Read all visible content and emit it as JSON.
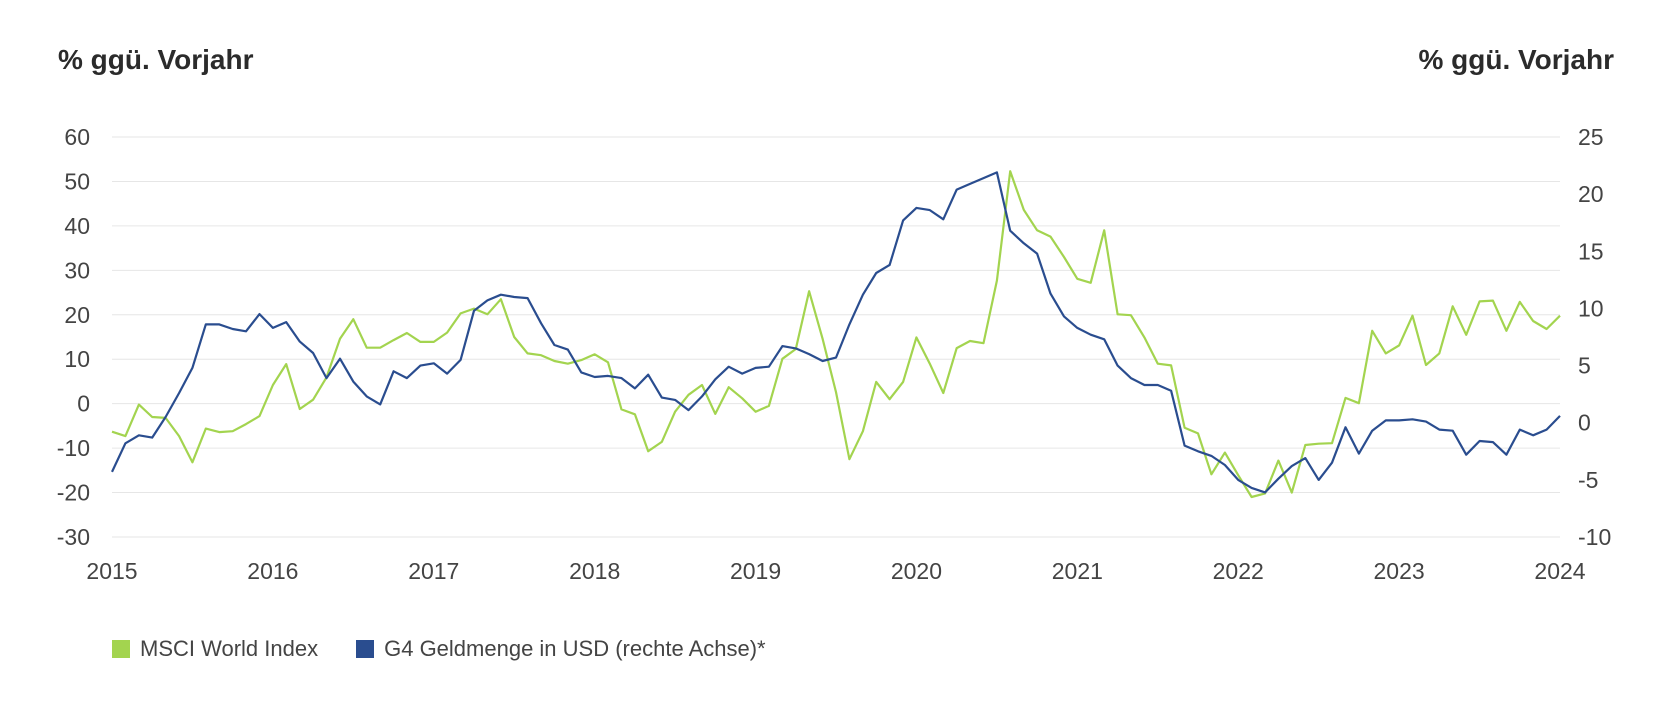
{
  "chart_data": {
    "type": "line",
    "left_axis_title": "% ggü. Vorjahr",
    "right_axis_title": "% ggü. Vorjahr",
    "x_tick_labels": [
      "2015",
      "2016",
      "2017",
      "2018",
      "2019",
      "2020",
      "2021",
      "2022",
      "2023",
      "2024"
    ],
    "y_left": {
      "ylim": [
        -30,
        60
      ],
      "ticks": [
        "60",
        "50",
        "40",
        "30",
        "20",
        "10",
        "0",
        "-10",
        "-20",
        "-30"
      ]
    },
    "y_right": {
      "ylim": [
        -10,
        25
      ],
      "ticks": [
        "25",
        "20",
        "15",
        "10",
        "5",
        "0",
        "-5",
        "-10"
      ]
    },
    "grid": true,
    "legend_position": "bottom-left",
    "series": [
      {
        "name": "MSCI World Index",
        "axis": "left",
        "color": "#a3d44f",
        "x": [
          2015.0,
          2015.083,
          2015.167,
          2015.25,
          2015.333,
          2015.417,
          2015.5,
          2015.583,
          2015.667,
          2015.75,
          2015.833,
          2015.917,
          2016.0,
          2016.083,
          2016.167,
          2016.25,
          2016.333,
          2016.417,
          2016.5,
          2016.583,
          2016.667,
          2016.75,
          2016.833,
          2016.917,
          2017.0,
          2017.083,
          2017.167,
          2017.25,
          2017.333,
          2017.417,
          2017.5,
          2017.583,
          2017.667,
          2017.75,
          2017.833,
          2017.917,
          2018.0,
          2018.083,
          2018.167,
          2018.25,
          2018.333,
          2018.417,
          2018.5,
          2018.583,
          2018.667,
          2018.75,
          2018.833,
          2018.917,
          2019.0,
          2019.083,
          2019.167,
          2019.25,
          2019.333,
          2019.417,
          2019.5,
          2019.583,
          2019.667,
          2019.75,
          2019.833,
          2019.917,
          2020.0,
          2020.083,
          2020.167,
          2020.25,
          2020.333,
          2020.417,
          2020.5,
          2020.583,
          2020.667,
          2020.75,
          2020.833,
          2020.917,
          2021.0,
          2021.083,
          2021.167,
          2021.25,
          2021.333,
          2021.417,
          2021.5,
          2021.583,
          2021.667,
          2021.75,
          2021.833,
          2021.917,
          2022.0,
          2022.083,
          2022.167,
          2022.25,
          2022.333,
          2022.417,
          2022.5,
          2022.583,
          2022.667,
          2022.75,
          2022.833,
          2022.917,
          2023.0,
          2023.083,
          2023.167,
          2023.25,
          2023.333,
          2023.417,
          2023.5,
          2023.583,
          2023.667,
          2023.75,
          2023.833,
          2023.917,
          2024.0
        ],
        "values": [
          -6.3,
          -7.3,
          -0.2,
          -3.0,
          -3.2,
          -7.3,
          -13.2,
          -5.6,
          -6.4,
          -6.2,
          -4.6,
          -2.8,
          4.2,
          8.9,
          -1.2,
          0.9,
          5.9,
          14.6,
          19.0,
          12.6,
          12.6,
          14.3,
          15.9,
          13.9,
          13.9,
          16.0,
          20.3,
          21.4,
          20.1,
          23.5,
          15.0,
          11.3,
          10.9,
          9.6,
          9.0,
          9.8,
          11.1,
          9.3,
          -1.3,
          -2.4,
          -10.7,
          -8.6,
          -1.8,
          2.0,
          4.2,
          -2.3,
          3.7,
          1.2,
          -1.8,
          -0.5,
          10.1,
          12.3,
          25.3,
          14.6,
          2.6,
          -12.5,
          -6.2,
          4.9,
          1.0,
          4.9,
          14.9,
          9.0,
          2.4,
          12.5,
          14.1,
          13.6,
          27.7,
          52.3,
          43.6,
          39.0,
          37.6,
          33.0,
          28.1,
          27.2,
          39.0,
          20.1,
          19.9,
          14.9,
          9.0,
          8.6,
          -5.4,
          -6.7,
          -15.9,
          -11.0,
          -16.1,
          -21.0,
          -20.2,
          -12.8,
          -20.0,
          -9.3,
          -9.0,
          -8.9,
          1.3,
          0.1,
          16.4,
          11.3,
          13.1,
          19.8,
          8.7,
          11.3,
          21.9,
          15.5,
          23.0,
          23.2,
          16.4,
          22.9,
          18.6,
          16.8,
          19.8
        ]
      },
      {
        "name": "G4 Geldmenge in USD (rechte Achse)*",
        "axis": "right",
        "color": "#2a4d8f",
        "x": [
          2015.0,
          2015.083,
          2015.167,
          2015.25,
          2015.333,
          2015.417,
          2015.5,
          2015.583,
          2015.667,
          2015.75,
          2015.833,
          2015.917,
          2016.0,
          2016.083,
          2016.167,
          2016.25,
          2016.333,
          2016.417,
          2016.5,
          2016.583,
          2016.667,
          2016.75,
          2016.833,
          2016.917,
          2017.0,
          2017.083,
          2017.167,
          2017.25,
          2017.333,
          2017.417,
          2017.5,
          2017.583,
          2017.667,
          2017.75,
          2017.833,
          2017.917,
          2018.0,
          2018.083,
          2018.167,
          2018.25,
          2018.333,
          2018.417,
          2018.5,
          2018.583,
          2018.667,
          2018.75,
          2018.833,
          2018.917,
          2019.0,
          2019.083,
          2019.167,
          2019.25,
          2019.333,
          2019.417,
          2019.5,
          2019.583,
          2019.667,
          2019.75,
          2019.833,
          2019.917,
          2020.0,
          2020.083,
          2020.167,
          2020.25,
          2020.333,
          2020.417,
          2020.5,
          2020.583,
          2020.667,
          2020.75,
          2020.833,
          2020.917,
          2021.0,
          2021.083,
          2021.167,
          2021.25,
          2021.333,
          2021.417,
          2021.5,
          2021.583,
          2021.667,
          2021.75,
          2021.833,
          2021.917,
          2022.0,
          2022.083,
          2022.167,
          2022.25,
          2022.333,
          2022.417,
          2022.5,
          2022.583,
          2022.667,
          2022.75,
          2022.833,
          2022.917,
          2023.0,
          2023.083,
          2023.167,
          2023.25,
          2023.333,
          2023.417,
          2023.5,
          2023.583,
          2023.667,
          2023.75,
          2023.833,
          2023.917,
          2024.0
        ],
        "values": [
          -4.3,
          -1.8,
          -1.1,
          -1.3,
          0.5,
          2.6,
          4.8,
          8.6,
          8.6,
          8.2,
          8.0,
          9.5,
          8.3,
          8.8,
          7.1,
          6.1,
          3.9,
          5.6,
          3.6,
          2.3,
          1.6,
          4.5,
          3.9,
          5.0,
          5.2,
          4.3,
          5.5,
          9.8,
          10.7,
          11.2,
          11.0,
          10.9,
          8.7,
          6.8,
          6.4,
          4.4,
          4.0,
          4.1,
          3.9,
          3.0,
          4.2,
          2.2,
          2.0,
          1.1,
          2.3,
          3.8,
          4.9,
          4.3,
          4.8,
          4.9,
          6.7,
          6.5,
          6.0,
          5.4,
          5.7,
          8.6,
          11.2,
          13.1,
          13.8,
          17.7,
          18.8,
          18.6,
          17.8,
          20.4,
          20.9,
          21.4,
          21.9,
          16.8,
          15.7,
          14.8,
          11.3,
          9.3,
          8.3,
          7.7,
          7.3,
          5.0,
          3.9,
          3.3,
          3.3,
          2.8,
          -2.0,
          -2.5,
          -2.9,
          -3.7,
          -5.0,
          -5.7,
          -6.1,
          -4.9,
          -3.8,
          -3.1,
          -5.0,
          -3.5,
          -0.4,
          -2.7,
          -0.7,
          0.2,
          0.2,
          0.3,
          0.1,
          -0.6,
          -0.7,
          -2.8,
          -1.6,
          -1.7,
          -2.8,
          -0.6,
          -1.1,
          -0.6,
          0.6
        ]
      }
    ]
  }
}
